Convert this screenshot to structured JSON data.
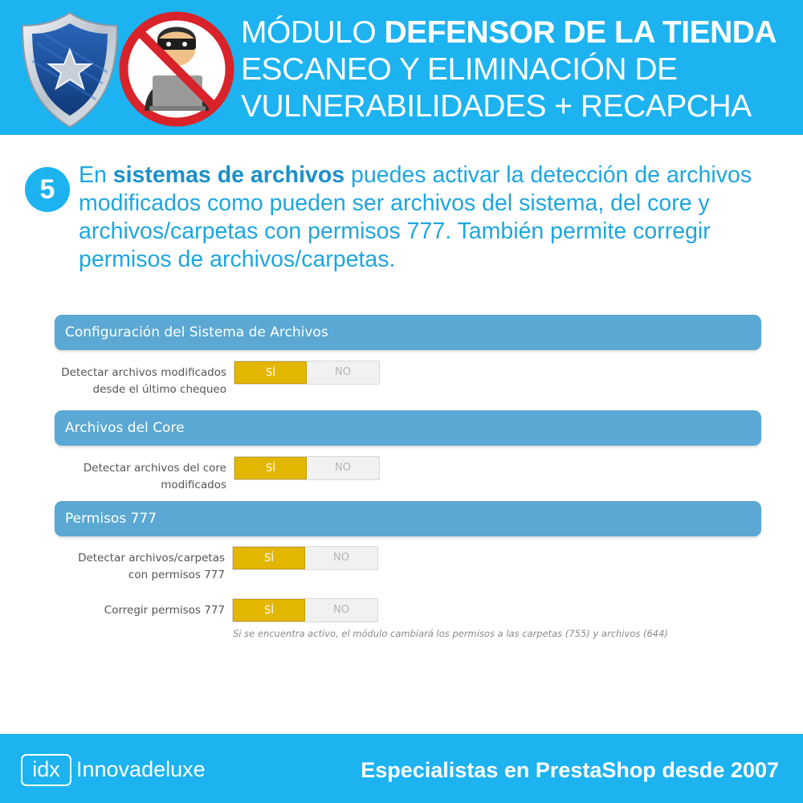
{
  "header": {
    "title_line1_light": "MÓDULO ",
    "title_line1_bold": "DEFENSOR DE LA TIENDA",
    "title_line2": "ESCANEO Y ELIMINACIÓN DE",
    "title_line3": "VULNERABILIDADES + RECAPCHA",
    "shield_icon": "shield-star-icon",
    "hacker_icon": "no-hacker-icon",
    "background_color": "#1cb3f0"
  },
  "step": {
    "number": "5",
    "text_before": "En ",
    "text_bold": "sistemas de archivos",
    "text_after": " puedes activar la detección de archivos modificados como pueden ser archivos del sistema, del core y archivos/carpetas con permisos 777. También permite corregir permisos de archivos/carpetas."
  },
  "sections": [
    {
      "title": "Configuración del Sistema de Archivos",
      "rows": [
        {
          "label_line1": "Detectar archivos modificados",
          "label_line2": "desde el último chequeo",
          "yes": "SÍ",
          "no": "NO",
          "value": "SÍ"
        }
      ]
    },
    {
      "title": "Archivos del Core",
      "rows": [
        {
          "label_line1": "Detectar archivos del core",
          "label_line2": "modificados",
          "yes": "SÍ",
          "no": "NO",
          "value": "SÍ"
        }
      ]
    },
    {
      "title": "Permisos 777",
      "rows": [
        {
          "label_line1": "Detectar archivos/carpetas",
          "label_line2": "con permisos 777",
          "yes": "SÍ",
          "no": "NO",
          "value": "SÍ"
        },
        {
          "label_line1": "Corregir permisos 777",
          "label_line2": "",
          "yes": "SÍ",
          "no": "NO",
          "value": "SÍ"
        }
      ]
    }
  ],
  "help_text": "Si se encuentra activo, el módulo cambiará los permisos a las carpetas (755) y archivos (644)",
  "footer": {
    "logo_mark": "idx",
    "logo_name": "Innovadeluxe",
    "tagline": "Especialistas en PrestaShop desde 2007"
  },
  "colors": {
    "brand": "#1cb3f0",
    "section_bar": "#5aa8d3",
    "toggle_active": "#e3b600"
  }
}
